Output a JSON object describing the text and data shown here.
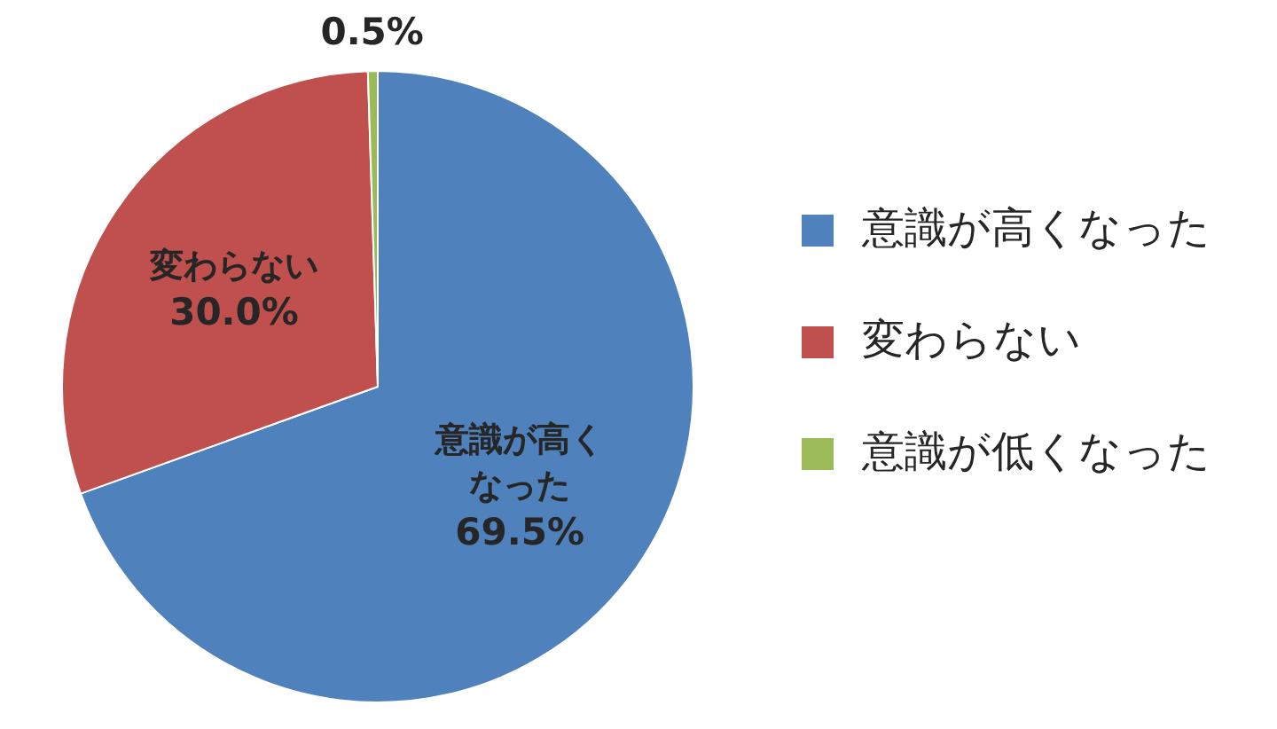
{
  "chart_data": {
    "type": "pie",
    "categories": [
      "意識が高くなった",
      "変わらない",
      "意識が低くなった"
    ],
    "values": [
      69.5,
      30.0,
      0.5
    ],
    "colors": [
      "#4f81bd",
      "#c0504d",
      "#9bbb59"
    ],
    "value_labels": [
      "69.5%",
      "30.0%",
      "0.5%"
    ],
    "legend": "right"
  }
}
